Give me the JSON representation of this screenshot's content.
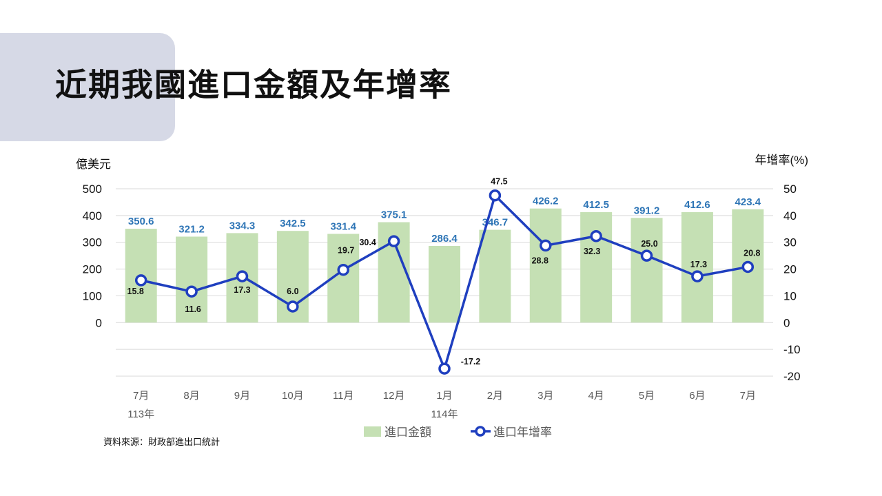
{
  "page": {
    "title": "近期我國進口金額及年增率",
    "source": "資料來源：財政部進出口統計"
  },
  "chart_data": {
    "type": "bar+line",
    "categories": [
      "7月",
      "8月",
      "9月",
      "10月",
      "11月",
      "12月",
      "1月",
      "2月",
      "3月",
      "4月",
      "5月",
      "6月",
      "7月"
    ],
    "year_labels": [
      {
        "index": 0,
        "label": "113年"
      },
      {
        "index": 6,
        "label": "114年"
      }
    ],
    "left_axis": {
      "label": "億美元",
      "ylim": [
        -200,
        500
      ],
      "ticks": [
        0,
        100,
        200,
        300,
        400,
        500
      ]
    },
    "right_axis": {
      "label": "年增率(%)",
      "ylim": [
        -20,
        50
      ],
      "ticks": [
        -20,
        -10,
        0,
        10,
        20,
        30,
        40,
        50
      ]
    },
    "series": [
      {
        "name": "進口金額",
        "type": "bar",
        "axis": "left",
        "values": [
          350.6,
          321.2,
          334.3,
          342.5,
          331.4,
          375.1,
          286.4,
          346.7,
          426.2,
          412.5,
          391.2,
          412.6,
          423.4
        ],
        "labels": [
          "350.6",
          "321.2",
          "334.3",
          "342.5",
          "331.4",
          "375.1",
          "286.4",
          "346.7",
          "426.2",
          "412.5",
          "391.2",
          "412.6",
          "423.4"
        ]
      },
      {
        "name": "進口年增率",
        "type": "line",
        "axis": "right",
        "values": [
          15.8,
          11.6,
          17.3,
          6.0,
          19.7,
          30.4,
          -17.2,
          47.5,
          28.8,
          32.3,
          25.0,
          17.3,
          20.8
        ],
        "labels": [
          "15.8",
          "11.6",
          "17.3",
          "6.0",
          "19.7",
          "30.4",
          "-17.2",
          "47.5",
          "28.8",
          "32.3",
          "25.0",
          "17.3",
          "20.8"
        ]
      }
    ],
    "grid": true,
    "legend": "bottom",
    "colors": {
      "bar": "#c5e0b4",
      "line": "#1f3fbf",
      "bar_label": "#2e75b6",
      "line_label": "#111111",
      "grid": "#d9d9d9"
    }
  }
}
